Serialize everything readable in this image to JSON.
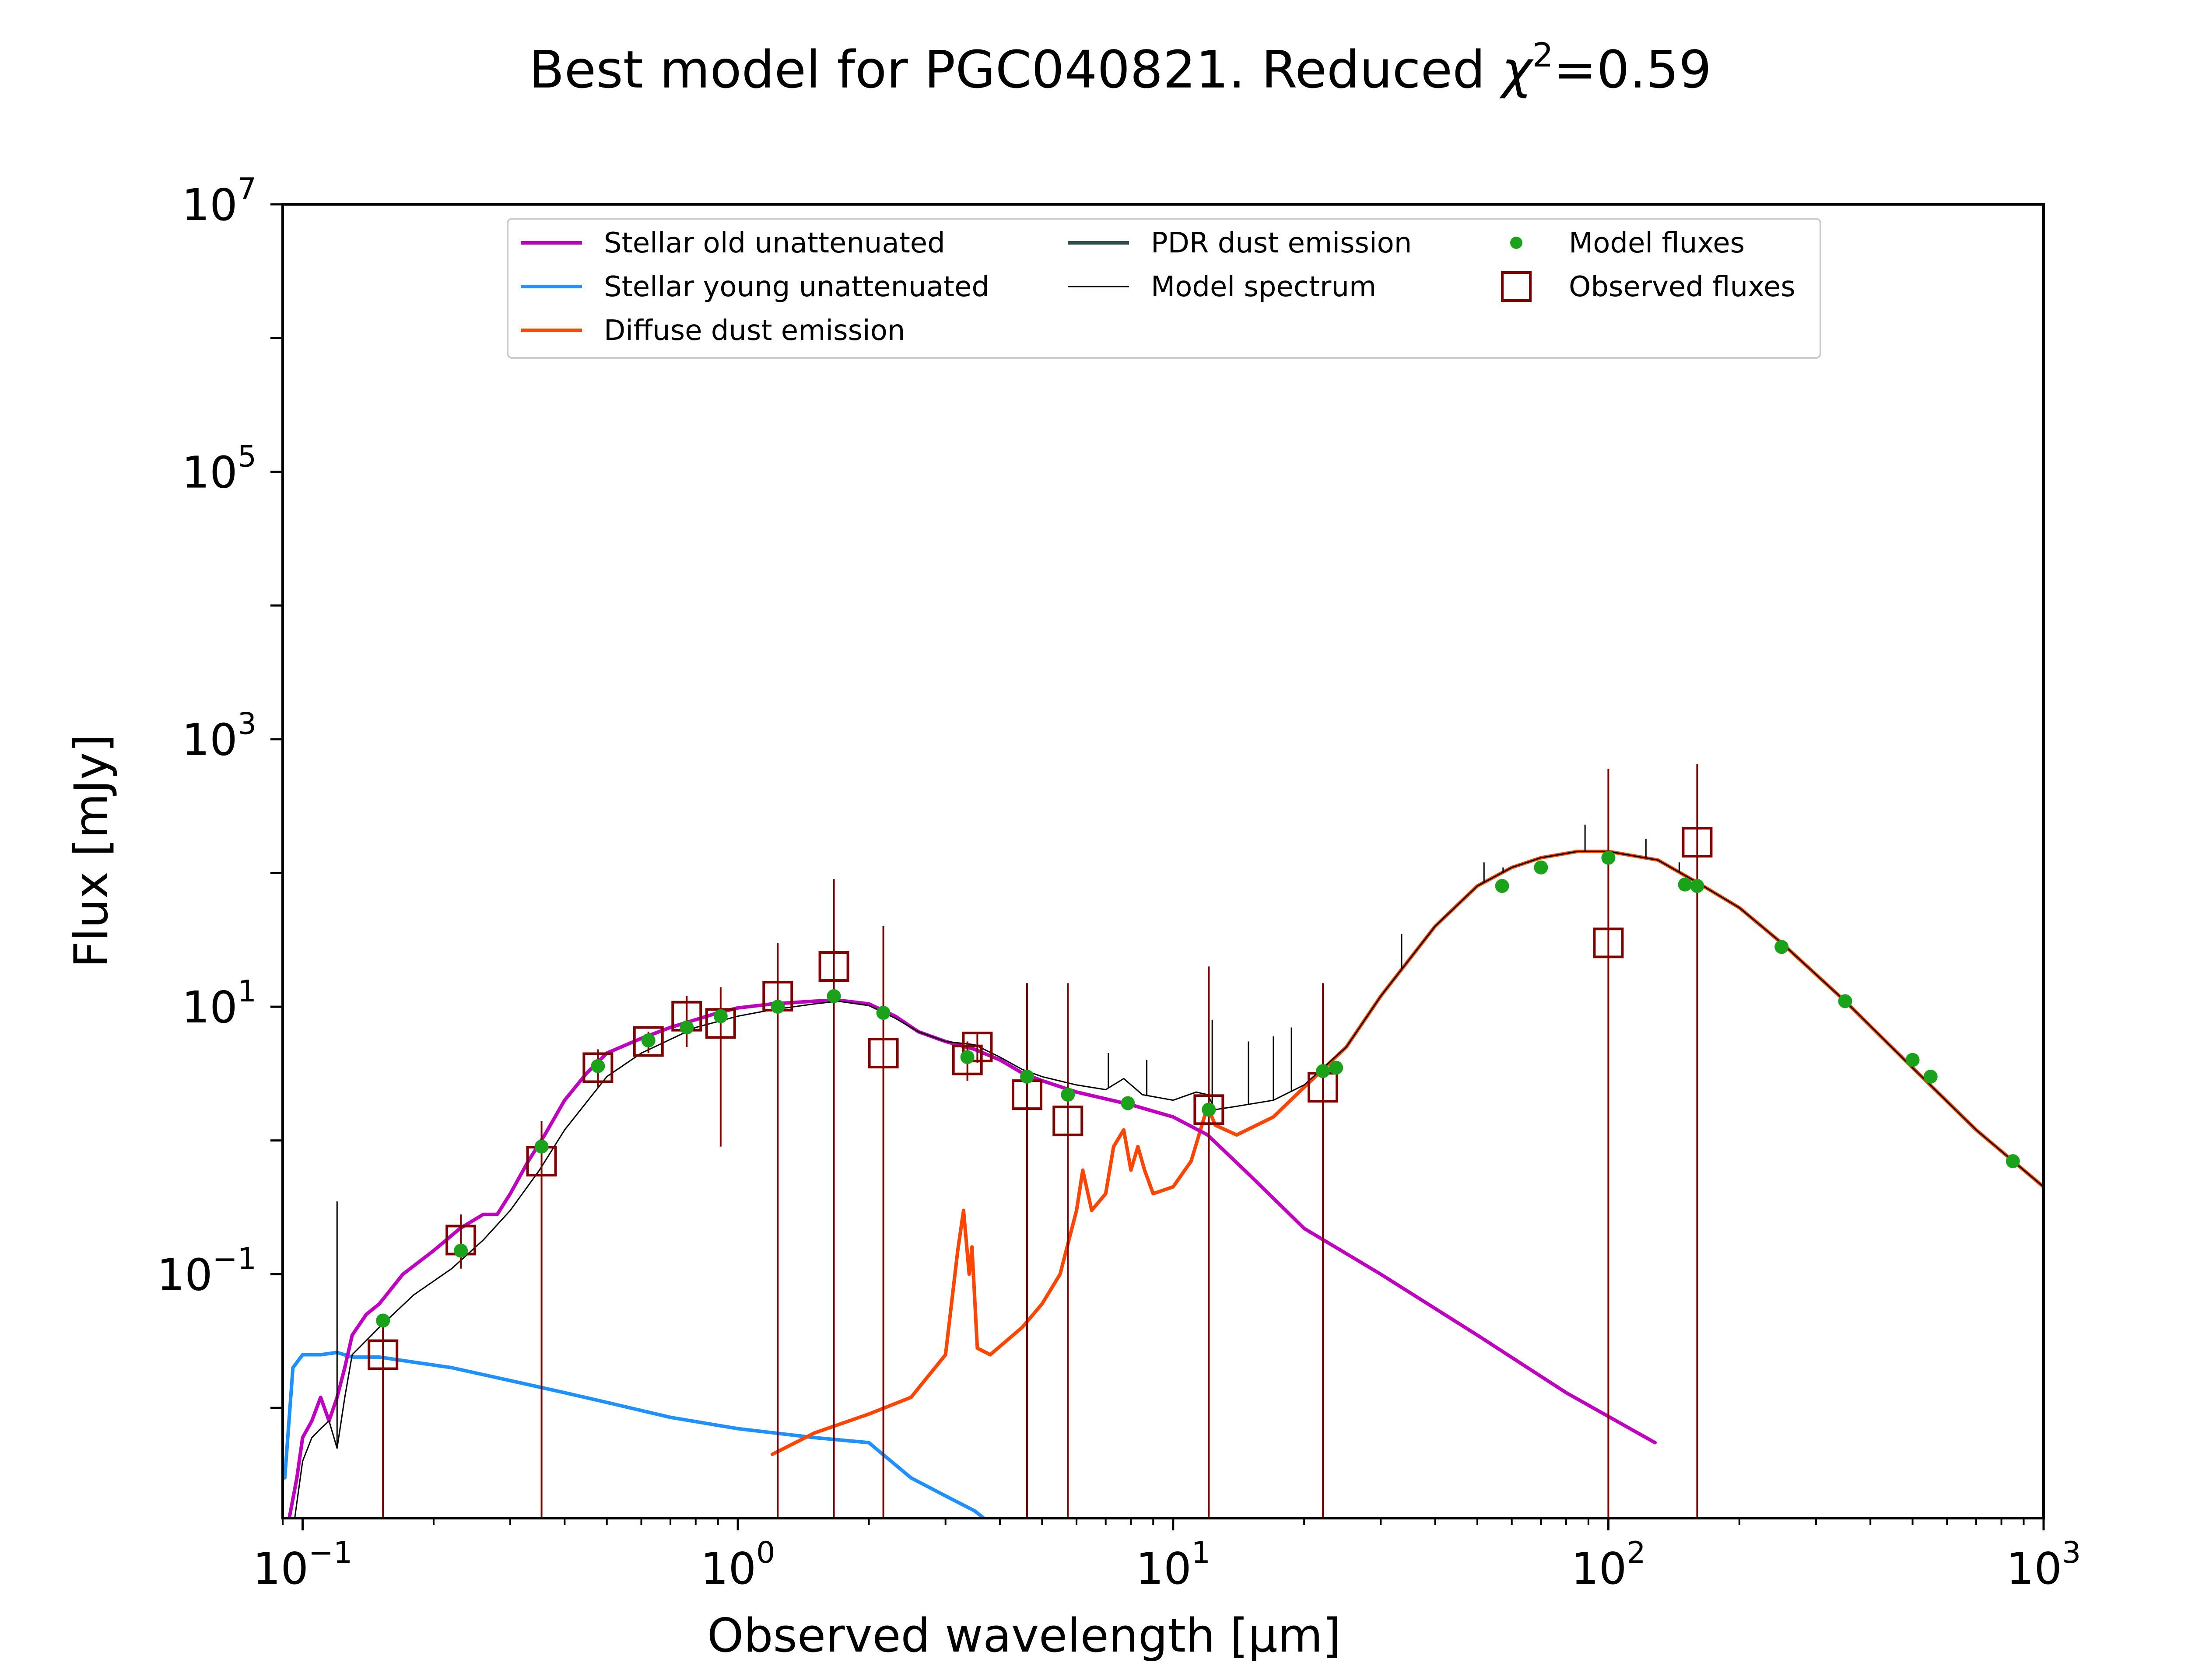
{
  "chart_data": {
    "type": "line",
    "title": "Best model for PGC040821. Reduced χ²=0.59",
    "title_parts": {
      "main": "Best model for PGC040821. Reduced ",
      "chi": "χ",
      "sup": "2",
      "tail": "=0.59"
    },
    "xlabel": "Observed wavelength [μm]",
    "ylabel": "Flux [mJy]",
    "xscale": "log",
    "yscale": "log",
    "xlim": [
      0.09,
      1000
    ],
    "ylim": [
      0.0015,
      10000000
    ],
    "x_ticks": [
      {
        "value": 0.1,
        "base": "10",
        "exp": "−1"
      },
      {
        "value": 1,
        "base": "10",
        "exp": "0"
      },
      {
        "value": 10,
        "base": "10",
        "exp": "1"
      },
      {
        "value": 100,
        "base": "10",
        "exp": "2"
      },
      {
        "value": 1000,
        "base": "10",
        "exp": "3"
      }
    ],
    "y_ticks": [
      {
        "value": 0.1,
        "base": "10",
        "exp": "−1"
      },
      {
        "value": 10,
        "base": "10",
        "exp": "1"
      },
      {
        "value": 1000,
        "base": "10",
        "exp": "3"
      },
      {
        "value": 100000,
        "base": "10",
        "exp": "5"
      },
      {
        "value": 10000000,
        "base": "10",
        "exp": "7"
      }
    ],
    "grid": false,
    "legend_position": "top-center",
    "colors": {
      "stellar_old": "#bf00bf",
      "stellar_young": "#1e90ff",
      "diffuse_dust": "#ff4500",
      "pdr_dust": "#2f4f4f",
      "model_spectrum": "#000000",
      "model_fluxes": "#1aa31a",
      "observed_fluxes": "#800000"
    },
    "legend": [
      {
        "label": "Stellar old unattenuated",
        "kind": "line",
        "color": "#bf00bf"
      },
      {
        "label": "Stellar young unattenuated",
        "kind": "line",
        "color": "#1e90ff"
      },
      {
        "label": "Diffuse dust emission",
        "kind": "line",
        "color": "#ff4500"
      },
      {
        "label": "PDR dust emission",
        "kind": "line",
        "color": "#2f4f4f"
      },
      {
        "label": "Model spectrum",
        "kind": "thinline",
        "color": "#000000"
      },
      {
        "label": "Model fluxes",
        "kind": "dot",
        "color": "#1aa31a"
      },
      {
        "label": "Observed fluxes",
        "kind": "square",
        "color": "#800000"
      }
    ],
    "series": [
      {
        "name": "Stellar old unattenuated",
        "color": "#bf00bf",
        "x": [
          0.092,
          0.097,
          0.1,
          0.105,
          0.11,
          0.115,
          0.12,
          0.125,
          0.13,
          0.14,
          0.15,
          0.17,
          0.2,
          0.23,
          0.26,
          0.28,
          0.3,
          0.33,
          0.36,
          0.4,
          0.45,
          0.5,
          0.6,
          0.7,
          0.8,
          0.9,
          1.0,
          1.2,
          1.5,
          1.7,
          2.0,
          2.3,
          2.6,
          3.0,
          3.5,
          4.0,
          4.5,
          5.0,
          6.0,
          8.0,
          10,
          12,
          15,
          20,
          30,
          50,
          80,
          128
        ],
        "y": [
          0.0012,
          0.003,
          0.006,
          0.008,
          0.012,
          0.008,
          0.012,
          0.02,
          0.035,
          0.05,
          0.06,
          0.1,
          0.15,
          0.22,
          0.28,
          0.28,
          0.4,
          0.7,
          1.1,
          2.0,
          3.2,
          4.5,
          5.8,
          7.0,
          8.0,
          9.0,
          9.8,
          10.5,
          11.0,
          11.2,
          10.5,
          8.5,
          6.5,
          5.5,
          4.8,
          4.0,
          3.2,
          2.8,
          2.3,
          1.85,
          1.5,
          1.1,
          0.55,
          0.22,
          0.1,
          0.035,
          0.013,
          0.0055
        ]
      },
      {
        "name": "Stellar young unattenuated",
        "color": "#1e90ff",
        "x": [
          0.091,
          0.095,
          0.1,
          0.11,
          0.12,
          0.13,
          0.15,
          0.18,
          0.22,
          0.3,
          0.4,
          0.5,
          0.7,
          1.0,
          1.5,
          2.0,
          2.5,
          3.0,
          3.5,
          4.0
        ],
        "y": [
          0.003,
          0.02,
          0.025,
          0.025,
          0.026,
          0.024,
          0.024,
          0.022,
          0.02,
          0.016,
          0.013,
          0.011,
          0.0085,
          0.007,
          0.006,
          0.0055,
          0.003,
          0.0022,
          0.0017,
          0.0012
        ]
      },
      {
        "name": "Diffuse dust emission",
        "color": "#ff4500",
        "x": [
          1.2,
          1.5,
          2.0,
          2.5,
          3.0,
          3.2,
          3.3,
          3.4,
          3.45,
          3.55,
          3.8,
          4.5,
          5.0,
          5.5,
          6.0,
          6.2,
          6.5,
          7.0,
          7.3,
          7.7,
          8.0,
          8.3,
          8.6,
          9.0,
          10,
          11,
          12,
          12.5,
          14,
          17,
          20,
          25,
          30,
          40,
          50,
          60,
          70,
          85,
          100,
          130,
          160,
          200,
          250,
          350,
          500,
          700,
          1000
        ],
        "y": [
          0.0045,
          0.0065,
          0.009,
          0.012,
          0.025,
          0.15,
          0.3,
          0.1,
          0.16,
          0.028,
          0.025,
          0.04,
          0.06,
          0.1,
          0.3,
          0.6,
          0.3,
          0.4,
          0.9,
          1.2,
          0.6,
          0.9,
          0.6,
          0.4,
          0.45,
          0.7,
          1.8,
          1.3,
          1.1,
          1.5,
          2.5,
          5.0,
          12,
          40,
          80,
          110,
          130,
          145,
          145,
          125,
          85,
          55,
          30,
          11,
          3.5,
          1.2,
          0.45
        ]
      },
      {
        "name": "Model spectrum",
        "color": "#000000",
        "x": [
          0.095,
          0.1,
          0.105,
          0.11,
          0.115,
          0.12,
          0.125,
          0.13,
          0.15,
          0.18,
          0.22,
          0.26,
          0.3,
          0.35,
          0.4,
          0.5,
          0.6,
          0.8,
          1.0,
          1.2,
          1.5,
          1.7,
          2.0,
          2.3,
          2.6,
          3.0,
          3.5,
          4.0,
          4.5,
          5.0,
          6.0,
          7.0,
          7.7,
          8.5,
          10,
          11.3,
          12,
          12.5,
          14,
          17,
          20,
          25,
          30,
          40,
          50,
          60,
          70,
          85,
          100,
          130,
          160,
          200,
          250,
          350,
          500,
          700,
          1000
        ],
        "y": [
          0.0012,
          0.004,
          0.006,
          0.007,
          0.008,
          0.005,
          0.012,
          0.025,
          0.04,
          0.07,
          0.11,
          0.18,
          0.3,
          0.6,
          1.2,
          3.0,
          4.5,
          7.0,
          8.5,
          9.5,
          10.5,
          11.0,
          10.2,
          8.2,
          6.5,
          5.5,
          5.2,
          4.2,
          3.4,
          3.0,
          2.6,
          2.4,
          2.9,
          2.2,
          2.0,
          2.3,
          2.2,
          1.7,
          1.8,
          2.0,
          2.6,
          5.0,
          12,
          40,
          80,
          110,
          130,
          145,
          145,
          125,
          85,
          55,
          30,
          11,
          3.5,
          1.2,
          0.45
        ]
      },
      {
        "name": "Model fluxes",
        "color": "#1aa31a",
        "x": [
          0.153,
          0.231,
          0.354,
          0.477,
          0.623,
          0.763,
          0.913,
          1.235,
          1.662,
          2.159,
          3.368,
          4.618,
          5.731,
          7.872,
          12.08,
          22.09,
          23.68,
          57.0,
          70.0,
          100.0,
          150.0,
          160.0,
          250.0,
          350.0,
          500.0,
          550.0,
          850.0
        ],
        "y": [
          0.045,
          0.15,
          0.9,
          3.6,
          5.6,
          7.0,
          8.5,
          10.0,
          12.0,
          9.0,
          4.2,
          3.0,
          2.2,
          1.9,
          1.7,
          3.3,
          3.5,
          80,
          110,
          130,
          82,
          80,
          28,
          11,
          4.0,
          3.0,
          0.7
        ]
      },
      {
        "name": "Observed fluxes",
        "color": "#800000",
        "x": [
          0.153,
          0.231,
          0.354,
          0.477,
          0.623,
          0.763,
          0.913,
          1.235,
          1.662,
          2.159,
          3.368,
          3.55,
          4.618,
          5.731,
          12.08,
          22.09,
          100.0,
          160.0
        ],
        "y": [
          0.025,
          0.18,
          0.7,
          3.5,
          5.5,
          8.5,
          7.5,
          12.0,
          20.0,
          4.5,
          4.0,
          5.0,
          2.2,
          1.4,
          1.7,
          2.5,
          30.0,
          170.0
        ],
        "err_low": [
          0.0015,
          0.11,
          0.0015,
          2.5,
          4.5,
          5.0,
          0.9,
          0.0015,
          0.0015,
          0.0015,
          2.8,
          3.8,
          0.0015,
          0.0015,
          0.0015,
          0.0015,
          0.0015,
          0.0015
        ],
        "err_high": [
          0.045,
          0.28,
          1.4,
          4.8,
          6.5,
          12.0,
          14.0,
          30.0,
          90.0,
          40.0,
          5.5,
          6.3,
          15.0,
          15.0,
          20.0,
          15.0,
          600.0,
          650.0
        ]
      }
    ],
    "model_spectrum_emission_lines": [
      {
        "x": 0.12,
        "y_top": 0.35
      },
      {
        "x": 7.1,
        "y_top": 4.5
      },
      {
        "x": 8.7,
        "y_top": 4.0
      },
      {
        "x": 12.3,
        "y_top": 8.0
      },
      {
        "x": 14.9,
        "y_top": 5.5
      },
      {
        "x": 17.0,
        "y_top": 6.0
      },
      {
        "x": 18.7,
        "y_top": 7.0
      },
      {
        "x": 33.5,
        "y_top": 35.0
      },
      {
        "x": 51.8,
        "y_top": 120.0
      },
      {
        "x": 57.3,
        "y_top": 110.0
      },
      {
        "x": 88.4,
        "y_top": 230.0
      },
      {
        "x": 122.0,
        "y_top": 180.0
      },
      {
        "x": 145.5,
        "y_top": 120.0
      }
    ]
  }
}
